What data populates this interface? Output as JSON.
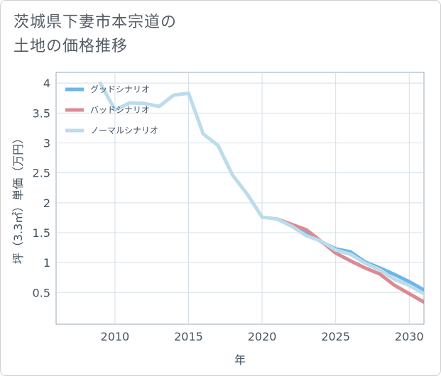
{
  "title_lines": [
    "茨城県下妻市本宗道の",
    "土地の価格推移"
  ],
  "chart_data": {
    "type": "line",
    "xlabel": "年",
    "ylabel": "坪（3.3㎡）単価（万円）",
    "xlim": [
      2006,
      2031
    ],
    "ylim": [
      -0.03,
      4.18
    ],
    "x_ticks": [
      2010,
      2015,
      2020,
      2025,
      2030
    ],
    "x_tick_labels": [
      "2010",
      "2015",
      "2020",
      "2025",
      "2030"
    ],
    "y_ticks": [
      0.5,
      1,
      1.5,
      2,
      2.5,
      3,
      3.5,
      4
    ],
    "y_tick_labels": [
      "0.5",
      "1",
      "1.5",
      "2",
      "2.5",
      "3",
      "3.5",
      "4"
    ],
    "grid": true,
    "legend_position": "top-left",
    "series": [
      {
        "name": "グッドシナリオ",
        "color": "#6cb6e8",
        "x": [
          2021,
          2022,
          2023,
          2024,
          2025,
          2026,
          2027,
          2028,
          2029,
          2030,
          2031
        ],
        "y": [
          1.73,
          1.63,
          1.52,
          1.35,
          1.23,
          1.18,
          1.01,
          0.91,
          0.8,
          0.68,
          0.54
        ]
      },
      {
        "name": "バッドシナリオ",
        "color": "#dc8a92",
        "x": [
          2021,
          2022,
          2023,
          2024,
          2025,
          2026,
          2027,
          2028,
          2029,
          2030,
          2031
        ],
        "y": [
          1.73,
          1.64,
          1.55,
          1.36,
          1.16,
          1.03,
          0.91,
          0.81,
          0.62,
          0.48,
          0.34
        ]
      },
      {
        "name": "ノーマルシナリオ",
        "color": "#bcdcec",
        "x": [
          2009,
          2010,
          2011,
          2012,
          2013,
          2014,
          2015,
          2016,
          2017,
          2018,
          2019,
          2020,
          2021,
          2022,
          2023,
          2024,
          2025,
          2026,
          2027,
          2028,
          2029,
          2030,
          2031
        ],
        "y": [
          4.0,
          3.55,
          3.67,
          3.66,
          3.61,
          3.8,
          3.83,
          3.15,
          2.96,
          2.46,
          2.14,
          1.76,
          1.73,
          1.61,
          1.45,
          1.36,
          1.21,
          1.14,
          0.99,
          0.88,
          0.72,
          0.62,
          0.48
        ]
      }
    ]
  }
}
